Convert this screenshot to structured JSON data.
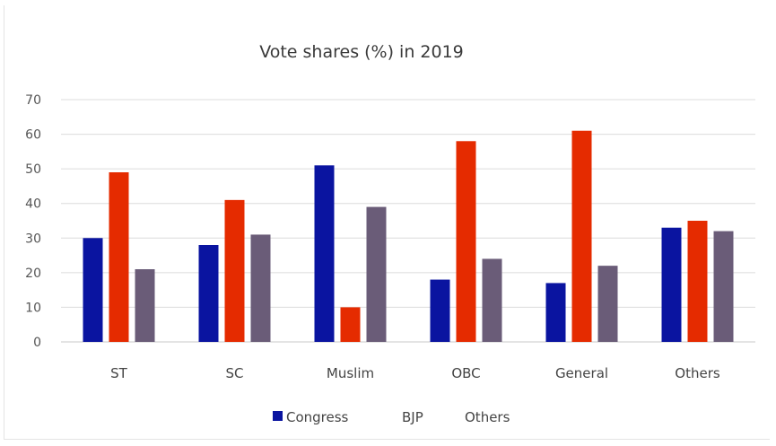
{
  "chart_data": {
    "type": "bar",
    "title": "Vote shares (%) in 2019",
    "xlabel": "",
    "ylabel": "",
    "categories": [
      "ST",
      "SC",
      "Muslim",
      "OBC",
      "General",
      "Others"
    ],
    "series": [
      {
        "name": "Congress",
        "color": "#0a14a0",
        "values": [
          30,
          28,
          51,
          18,
          17,
          33
        ]
      },
      {
        "name": "BJP",
        "color": "#e52b00",
        "values": [
          49,
          41,
          10,
          58,
          61,
          35
        ]
      },
      {
        "name": "Others",
        "color": "#6a5c78",
        "values": [
          21,
          31,
          39,
          24,
          22,
          32
        ]
      }
    ],
    "ylim": [
      0,
      70
    ],
    "yticks": [
      0,
      10,
      20,
      30,
      40,
      50,
      60,
      70
    ],
    "grid": true,
    "legend_position": "bottom"
  }
}
